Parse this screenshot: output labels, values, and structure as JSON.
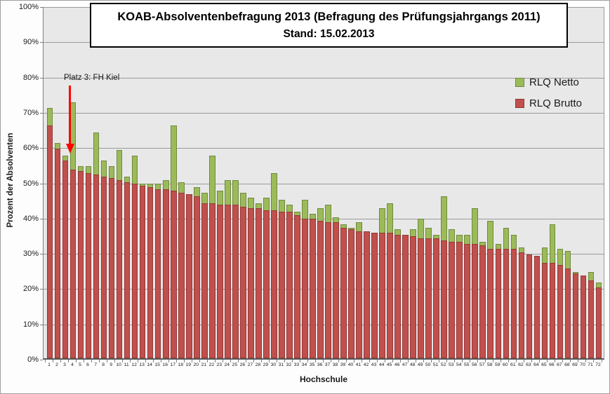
{
  "title": {
    "line1": "KOAB-Absolventenbefragung 2013 (Befragung des Prüfungsjahrgangs 2011)",
    "line2": "Stand: 15.02.2013"
  },
  "annotation": {
    "text": "Platz 3: FH Kiel",
    "arrow_color": "#FF0000",
    "points_to_category": 3
  },
  "legend": {
    "position": "top-right",
    "items": [
      {
        "label": "RLQ Netto",
        "color": "#9BBB59",
        "border": "#71893F"
      },
      {
        "label": "RLQ Brutto",
        "color": "#C0504D",
        "border": "#953735"
      }
    ]
  },
  "axes": {
    "y_title": "Prozent der Absolventen",
    "x_title": "Hochschule",
    "y_tick_labels": [
      "100%",
      "90%",
      "80%",
      "70%",
      "60%",
      "50%",
      "40%",
      "30%",
      "20%",
      "10%",
      "0%"
    ]
  },
  "colors": {
    "plot_background": "#E8E8E8",
    "gridline": "#9a9a9a",
    "netto_fill": "#9BBB59",
    "netto_border": "#71893F",
    "brutto_fill": "#C0504D",
    "brutto_border": "#953735"
  },
  "chart_data": {
    "type": "bar",
    "title": "KOAB-Absolventenbefragung 2013 (Befragung des Prüfungsjahrgangs 2011) Stand: 15.02.2013",
    "xlabel": "Hochschule",
    "ylabel": "Prozent der Absolventen",
    "ylim": [
      0,
      100
    ],
    "y_tick_step": 10,
    "grid": true,
    "legend_position": "top-right",
    "bar_style": "overlapped (Netto drawn behind Brutto)",
    "categories": [
      1,
      2,
      3,
      4,
      5,
      6,
      7,
      8,
      9,
      10,
      11,
      12,
      13,
      14,
      15,
      16,
      17,
      18,
      19,
      20,
      21,
      22,
      23,
      24,
      25,
      26,
      27,
      28,
      29,
      30,
      31,
      32,
      33,
      34,
      35,
      36,
      37,
      38,
      39,
      40,
      41,
      42,
      43,
      44,
      45,
      46,
      47,
      48,
      49,
      50,
      51,
      52,
      53,
      54,
      55,
      56,
      57,
      58,
      59,
      60,
      61,
      62,
      63,
      64,
      65,
      66,
      67,
      68,
      69,
      70,
      71,
      72
    ],
    "series": [
      {
        "name": "RLQ Netto",
        "color": "#9BBB59",
        "values": [
          71,
          61,
          57.5,
          72.5,
          54.5,
          54.5,
          64,
          56,
          54.5,
          59,
          51.5,
          57.5,
          49.5,
          49.5,
          49.5,
          50.5,
          66,
          50,
          46.5,
          48.5,
          47,
          57.5,
          47.5,
          50.5,
          50.5,
          47,
          45.5,
          44,
          45.5,
          52.5,
          45,
          43.5,
          41.5,
          45,
          41,
          42.5,
          43.5,
          40,
          38,
          37,
          38.5,
          36,
          35.5,
          42.5,
          44,
          36.5,
          35,
          36.5,
          39.5,
          37,
          35,
          46,
          36.5,
          35,
          35,
          42.5,
          33,
          39,
          32.5,
          37,
          35,
          31.5,
          29.5,
          29,
          31.5,
          38,
          31,
          30.5,
          24.5,
          23.5,
          24.5,
          21.5
        ]
      },
      {
        "name": "RLQ Brutto",
        "color": "#C0504D",
        "values": [
          66,
          59.5,
          56,
          53.5,
          53,
          52.5,
          52,
          51.5,
          51,
          50.5,
          50,
          49.5,
          49,
          48.5,
          48,
          48,
          47.5,
          47,
          46.5,
          46,
          44,
          44,
          43.5,
          43.5,
          43.5,
          43,
          42.5,
          42.5,
          42,
          42,
          41.5,
          41.5,
          40.5,
          39.5,
          39.5,
          39,
          38.5,
          38.5,
          37,
          36.5,
          36,
          36,
          35.5,
          35.5,
          35.5,
          35,
          35,
          34.5,
          34,
          34,
          34,
          33.5,
          33,
          33,
          32.5,
          32.5,
          32,
          31,
          31,
          31,
          31,
          30,
          29.5,
          29,
          27,
          27,
          26.5,
          25.5,
          24,
          23.5,
          22,
          20
        ]
      }
    ]
  }
}
